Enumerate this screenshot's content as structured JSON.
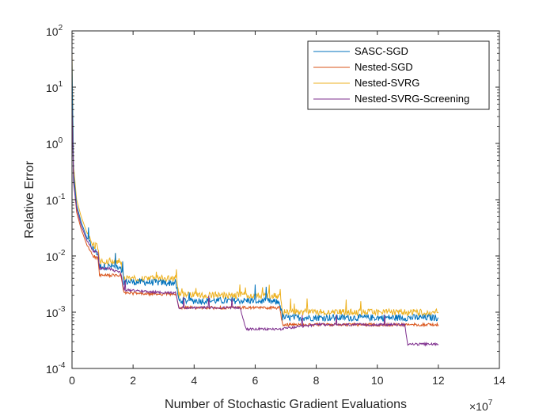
{
  "chart_data": {
    "type": "line",
    "xlabel": "Number of Stochastic Gradient Evaluations",
    "ylabel": "Relative Error",
    "x_multiplier": "×10",
    "x_multiplier_exp": "7",
    "xlim": [
      0,
      14
    ],
    "xticks": [
      "0",
      "2",
      "4",
      "6",
      "8",
      "10",
      "12",
      "14"
    ],
    "ylim": [
      0.0001,
      100
    ],
    "yscale": "log",
    "yticks": [
      {
        "base": "10",
        "exp": "-4",
        "value": 0.0001
      },
      {
        "base": "10",
        "exp": "-3",
        "value": 0.001
      },
      {
        "base": "10",
        "exp": "-2",
        "value": 0.01
      },
      {
        "base": "10",
        "exp": "-1",
        "value": 0.1
      },
      {
        "base": "10",
        "exp": "0",
        "value": 1
      },
      {
        "base": "10",
        "exp": "1",
        "value": 10
      },
      {
        "base": "10",
        "exp": "2",
        "value": 100
      }
    ],
    "grid": false,
    "legend_position": "top-right",
    "series": [
      {
        "name": "SASC-SGD",
        "color": "#0072BD",
        "x": [
          0,
          0.05,
          0.15,
          0.3,
          0.5,
          0.7,
          0.85,
          0.9,
          1.2,
          1.6,
          1.7,
          2.5,
          3.4,
          3.5,
          4.5,
          6.0,
          6.8,
          6.9,
          8,
          10,
          12
        ],
        "y": [
          30,
          0.3,
          0.08,
          0.04,
          0.02,
          0.013,
          0.011,
          0.0065,
          0.0065,
          0.0065,
          0.0035,
          0.0034,
          0.0033,
          0.0016,
          0.0016,
          0.0016,
          0.0015,
          0.0008,
          0.0008,
          0.0008,
          0.0008
        ]
      },
      {
        "name": "Nested-SGD",
        "color": "#D95319",
        "x": [
          0,
          0.05,
          0.15,
          0.3,
          0.5,
          0.7,
          0.85,
          0.9,
          1.2,
          1.6,
          1.7,
          2.5,
          3.4,
          3.5,
          4.5,
          6.0,
          6.8,
          6.9,
          8,
          10,
          12
        ],
        "y": [
          20,
          0.25,
          0.06,
          0.03,
          0.015,
          0.01,
          0.009,
          0.0045,
          0.0045,
          0.0045,
          0.0022,
          0.0021,
          0.0021,
          0.0012,
          0.0012,
          0.0012,
          0.0012,
          0.0006,
          0.0006,
          0.0006,
          0.0006
        ]
      },
      {
        "name": "Nested-SVRG",
        "color": "#EDB120",
        "x": [
          0,
          0.05,
          0.15,
          0.3,
          0.5,
          0.7,
          0.85,
          0.9,
          1.2,
          1.6,
          1.7,
          2.5,
          3.4,
          3.5,
          4.5,
          6.0,
          6.8,
          6.9,
          8,
          10,
          12
        ],
        "y": [
          40,
          0.4,
          0.1,
          0.05,
          0.025,
          0.016,
          0.014,
          0.008,
          0.008,
          0.008,
          0.004,
          0.004,
          0.004,
          0.002,
          0.002,
          0.002,
          0.0019,
          0.001,
          0.001,
          0.001,
          0.001
        ]
      },
      {
        "name": "Nested-SVRG-Screening",
        "color": "#7E2F8E",
        "x": [
          0,
          0.05,
          0.15,
          0.3,
          0.5,
          0.7,
          0.85,
          0.9,
          1.2,
          1.6,
          1.7,
          2.5,
          3.4,
          3.5,
          4.5,
          5.5,
          5.7,
          6.8,
          8,
          10,
          10.9,
          11.0,
          12
        ],
        "y": [
          5,
          0.2,
          0.07,
          0.035,
          0.018,
          0.012,
          0.012,
          0.006,
          0.006,
          0.005,
          0.0025,
          0.0023,
          0.0022,
          0.0012,
          0.0012,
          0.0012,
          0.0005,
          0.0005,
          0.0006,
          0.0006,
          0.0006,
          0.00027,
          0.00027
        ]
      }
    ]
  }
}
